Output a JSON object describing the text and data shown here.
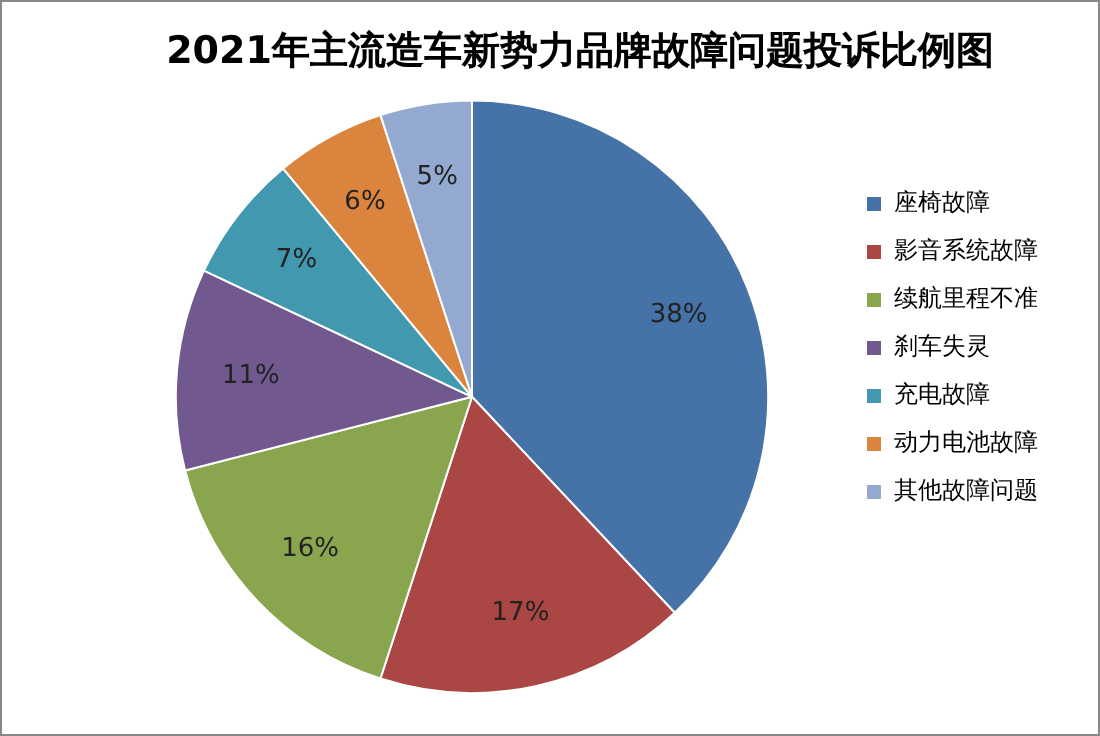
{
  "chart_data": {
    "type": "pie",
    "title": "2021年主流造车新势力品牌故障问题投诉比例图",
    "categories": [
      "座椅故障",
      "影音系统故障",
      "续航里程不准",
      "刹车失灵",
      "充电故障",
      "动力电池故障",
      "其他故障问题"
    ],
    "values": [
      38,
      17,
      16,
      11,
      7,
      6,
      5
    ],
    "value_labels": [
      "38%",
      "17%",
      "16%",
      "11%",
      "7%",
      "6%",
      "5%"
    ],
    "colors": [
      "#4572a7",
      "#aa4643",
      "#89a54e",
      "#71588f",
      "#4198af",
      "#db843d",
      "#93a9cf"
    ],
    "legend": "right"
  }
}
